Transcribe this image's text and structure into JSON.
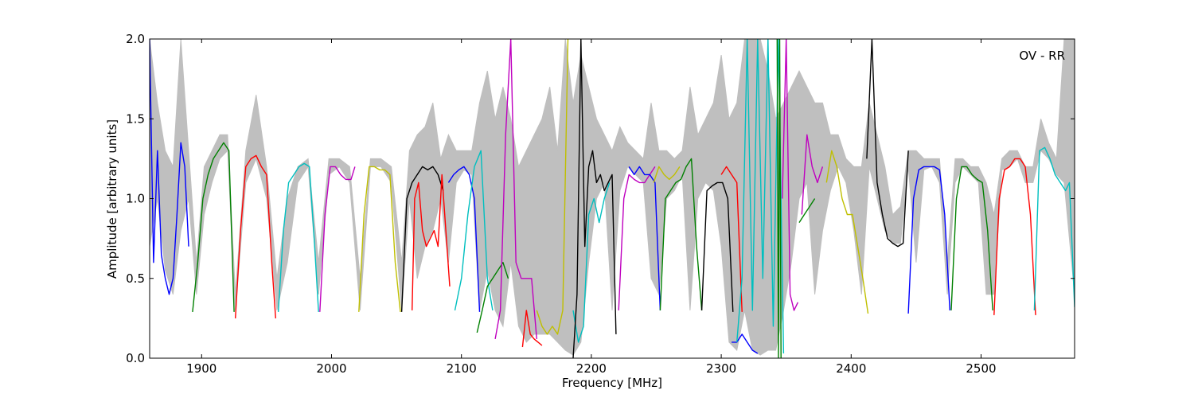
{
  "chart_data": {
    "type": "line",
    "xlabel": "Frequency [MHz]",
    "ylabel": "Amplitude [arbitrary units]",
    "annotation": "OV - RR",
    "xlim": [
      1860,
      2572
    ],
    "ylim": [
      0.0,
      2.0
    ],
    "xticks": [
      1900,
      2000,
      2100,
      2200,
      2300,
      2400,
      2500
    ],
    "xtick_labels": [
      "1900",
      "2000",
      "2100",
      "2200",
      "2300",
      "2400",
      "2500"
    ],
    "yticks": [
      0.0,
      0.5,
      1.0,
      1.5,
      2.0
    ],
    "ytick_labels": [
      "0.0",
      "0.5",
      "1.0",
      "1.5",
      "2.0"
    ],
    "grid": false,
    "colors": {
      "background_series": "#bfbfbf",
      "palette": [
        "#0000ff",
        "#008000",
        "#ff0000",
        "#00bfbf",
        "#bf00bf",
        "#bfbf00",
        "#000000"
      ]
    },
    "background_envelope": {
      "name": "background",
      "color": "#bfbfbf",
      "x": [
        1860,
        1866,
        1872,
        1878,
        1884,
        1890,
        1896,
        1902,
        1908,
        1914,
        1920,
        1926,
        1934,
        1942,
        1950,
        1958,
        1966,
        1974,
        1982,
        1990,
        1998,
        2006,
        2014,
        2022,
        2030,
        2038,
        2046,
        2054,
        2060,
        2066,
        2072,
        2078,
        2084,
        2090,
        2096,
        2102,
        2108,
        2114,
        2120,
        2126,
        2132,
        2138,
        2144,
        2150,
        2156,
        2162,
        2168,
        2174,
        2180,
        2186,
        2192,
        2198,
        2204,
        2210,
        2216,
        2222,
        2228,
        2234,
        2240,
        2246,
        2252,
        2258,
        2264,
        2270,
        2276,
        2282,
        2288,
        2294,
        2300,
        2306,
        2312,
        2318,
        2324,
        2330,
        2336,
        2342,
        2348,
        2354,
        2360,
        2366,
        2372,
        2378,
        2384,
        2390,
        2396,
        2402,
        2408,
        2414,
        2420,
        2426,
        2432,
        2438,
        2444,
        2450,
        2456,
        2462,
        2468,
        2474,
        2480,
        2486,
        2492,
        2498,
        2504,
        2510,
        2516,
        2522,
        2528,
        2534,
        2540,
        2546,
        2552,
        2558,
        2564,
        2572
      ],
      "y_low": [
        0.7,
        1.0,
        0.55,
        0.4,
        0.8,
        1.0,
        0.4,
        0.9,
        1.1,
        1.25,
        1.3,
        0.3,
        1.1,
        1.25,
        1.0,
        0.3,
        0.6,
        1.1,
        1.2,
        0.4,
        1.15,
        1.2,
        1.1,
        0.3,
        1.2,
        1.2,
        1.1,
        0.3,
        1.0,
        0.5,
        0.7,
        0.8,
        1.0,
        0.6,
        1.1,
        1.18,
        1.15,
        0.3,
        0.55,
        0.3,
        0.2,
        0.6,
        0.2,
        0.1,
        0.15,
        0.15,
        0.15,
        0.1,
        0.05,
        0.02,
        0.1,
        0.6,
        1.0,
        1.1,
        0.3,
        1.05,
        1.2,
        1.15,
        1.1,
        0.5,
        0.4,
        1.0,
        1.05,
        1.15,
        0.3,
        1.0,
        1.1,
        1.05,
        0.7,
        0.1,
        0.05,
        0.3,
        0.05,
        0.02,
        0.05,
        0.05,
        0.3,
        0.6,
        1.0,
        1.1,
        0.4,
        0.8,
        1.05,
        1.2,
        1.1,
        0.8,
        0.4,
        1.2,
        1.0,
        0.8,
        0.72,
        0.72,
        1.2,
        0.6,
        1.18,
        1.2,
        1.1,
        0.4,
        1.1,
        1.2,
        1.15,
        1.1,
        0.4,
        0.4,
        1.18,
        1.2,
        1.25,
        1.1,
        1.1,
        1.3,
        1.25,
        1.15,
        1.1,
        0.4
      ],
      "y_high": [
        2.0,
        1.6,
        1.3,
        1.2,
        2.0,
        1.3,
        0.6,
        1.2,
        1.3,
        1.4,
        1.4,
        0.4,
        1.3,
        1.65,
        1.2,
        0.5,
        1.0,
        1.2,
        1.25,
        0.6,
        1.25,
        1.25,
        1.2,
        0.5,
        1.25,
        1.25,
        1.2,
        0.6,
        1.3,
        1.4,
        1.45,
        1.6,
        1.25,
        1.4,
        1.3,
        1.3,
        1.3,
        1.6,
        1.8,
        1.5,
        1.7,
        1.5,
        1.2,
        1.3,
        1.4,
        1.5,
        1.7,
        1.3,
        2.0,
        1.6,
        1.9,
        1.7,
        1.5,
        1.4,
        1.3,
        1.45,
        1.35,
        1.3,
        1.25,
        1.6,
        1.3,
        1.3,
        1.25,
        1.3,
        1.7,
        1.4,
        1.5,
        1.6,
        1.9,
        1.5,
        1.6,
        2.0,
        2.0,
        2.0,
        1.8,
        1.5,
        1.6,
        1.7,
        1.8,
        1.7,
        1.6,
        1.6,
        1.4,
        1.4,
        1.25,
        1.2,
        1.2,
        1.6,
        1.4,
        1.2,
        0.9,
        0.95,
        1.3,
        1.3,
        1.25,
        1.25,
        1.25,
        0.6,
        1.25,
        1.25,
        1.2,
        1.2,
        1.1,
        0.9,
        1.25,
        1.3,
        1.3,
        1.2,
        1.2,
        1.5,
        1.35,
        1.25,
        2.0,
        2.0
      ]
    },
    "series": [
      {
        "color": "#0000ff",
        "x": [
          1860,
          1863,
          1866,
          1869,
          1872,
          1875,
          1878,
          1881,
          1884,
          1887,
          1890
        ],
        "y": [
          2.0,
          0.6,
          1.3,
          0.65,
          0.5,
          0.4,
          0.5,
          0.9,
          1.35,
          1.2,
          0.7
        ]
      },
      {
        "color": "#008000",
        "x": [
          1893,
          1897,
          1901,
          1905,
          1909,
          1913,
          1917,
          1921,
          1925
        ],
        "y": [
          0.29,
          0.6,
          1.0,
          1.15,
          1.25,
          1.3,
          1.35,
          1.3,
          0.29
        ]
      },
      {
        "color": "#ff0000",
        "x": [
          1926,
          1930,
          1934,
          1938,
          1942,
          1946,
          1950,
          1954,
          1957
        ],
        "y": [
          0.25,
          0.8,
          1.2,
          1.25,
          1.27,
          1.2,
          1.15,
          0.6,
          0.25
        ]
      },
      {
        "color": "#00bfbf",
        "x": [
          1959,
          1963,
          1967,
          1971,
          1975,
          1979,
          1983,
          1987,
          1990
        ],
        "y": [
          0.29,
          0.8,
          1.1,
          1.15,
          1.2,
          1.22,
          1.2,
          0.7,
          0.29
        ]
      },
      {
        "color": "#bf00bf",
        "x": [
          1991,
          1995,
          1999,
          2003,
          2007,
          2011,
          2015,
          2018
        ],
        "y": [
          0.29,
          0.9,
          1.2,
          1.2,
          1.15,
          1.12,
          1.12,
          1.2
        ]
      },
      {
        "color": "#bfbf00",
        "x": [
          2021,
          2025,
          2029,
          2033,
          2037,
          2041,
          2045,
          2049,
          2053
        ],
        "y": [
          0.29,
          0.9,
          1.2,
          1.2,
          1.18,
          1.18,
          1.15,
          0.6,
          0.29
        ]
      },
      {
        "color": "#000000",
        "x": [
          2054,
          2058,
          2062,
          2066,
          2070,
          2074,
          2078,
          2082,
          2086
        ],
        "y": [
          0.29,
          1.0,
          1.1,
          1.15,
          1.2,
          1.18,
          1.2,
          1.15,
          1.05
        ]
      },
      {
        "color": "#ff0000",
        "x": [
          2062,
          2064,
          2067,
          2070,
          2073,
          2076,
          2079,
          2082,
          2085,
          2088,
          2091
        ],
        "y": [
          0.3,
          1.0,
          1.1,
          0.8,
          0.7,
          0.75,
          0.8,
          0.7,
          1.15,
          0.8,
          0.45
        ]
      },
      {
        "color": "#0000ff",
        "x": [
          2090,
          2094,
          2098,
          2102,
          2106,
          2110,
          2114
        ],
        "y": [
          1.1,
          1.15,
          1.18,
          1.2,
          1.15,
          1.0,
          0.29
        ]
      },
      {
        "color": "#00bfbf",
        "x": [
          2095,
          2100,
          2105,
          2110,
          2115,
          2120,
          2124
        ],
        "y": [
          0.3,
          0.5,
          0.9,
          1.2,
          1.3,
          0.5,
          0.3
        ]
      },
      {
        "color": "#008000",
        "x": [
          2112,
          2116,
          2120,
          2124,
          2128,
          2132,
          2136
        ],
        "y": [
          0.16,
          0.3,
          0.45,
          0.5,
          0.55,
          0.6,
          0.5
        ]
      },
      {
        "color": "#bf00bf",
        "x": [
          2126,
          2130,
          2134,
          2138,
          2142,
          2146,
          2150,
          2154,
          2158
        ],
        "y": [
          0.12,
          0.3,
          1.4,
          2.0,
          0.6,
          0.5,
          0.5,
          0.5,
          0.12
        ]
      },
      {
        "color": "#ff0000",
        "x": [
          2147,
          2150,
          2153,
          2156,
          2159,
          2162
        ],
        "y": [
          0.07,
          0.3,
          0.15,
          0.12,
          0.1,
          0.08
        ]
      },
      {
        "color": "#bfbf00",
        "x": [
          2158,
          2162,
          2166,
          2170,
          2174,
          2178,
          2182
        ],
        "y": [
          0.3,
          0.2,
          0.15,
          0.2,
          0.15,
          0.3,
          2.0
        ]
      },
      {
        "color": "#00bfbf",
        "x": [
          2186,
          2190,
          2194,
          2198,
          2202,
          2206,
          2210,
          2214
        ],
        "y": [
          0.3,
          0.1,
          0.2,
          0.9,
          1.0,
          0.85,
          1.0,
          1.1
        ]
      },
      {
        "color": "#000000",
        "x": [
          2186,
          2189,
          2192,
          2195,
          2198,
          2201,
          2204,
          2207,
          2210,
          2213,
          2216,
          2219
        ],
        "y": [
          0.0,
          0.4,
          2.0,
          0.7,
          1.2,
          1.3,
          1.1,
          1.15,
          1.05,
          1.1,
          1.15,
          0.15
        ]
      },
      {
        "color": "#bf00bf",
        "x": [
          2221,
          2225,
          2229,
          2233,
          2237,
          2241,
          2245,
          2249
        ],
        "y": [
          0.3,
          1.0,
          1.15,
          1.12,
          1.1,
          1.1,
          1.15,
          1.2
        ]
      },
      {
        "color": "#0000ff",
        "x": [
          2229,
          2233,
          2237,
          2241,
          2245,
          2249,
          2253
        ],
        "y": [
          1.2,
          1.15,
          1.2,
          1.15,
          1.15,
          1.1,
          0.3
        ]
      },
      {
        "color": "#008000",
        "x": [
          2253,
          2257,
          2261,
          2265,
          2269,
          2273,
          2277,
          2281,
          2285
        ],
        "y": [
          0.3,
          1.0,
          1.05,
          1.1,
          1.12,
          1.2,
          1.25,
          0.7,
          0.3
        ]
      },
      {
        "color": "#bfbf00",
        "x": [
          2248,
          2252,
          2256,
          2260,
          2264,
          2268
        ],
        "y": [
          1.1,
          1.2,
          1.15,
          1.12,
          1.15,
          1.2
        ]
      },
      {
        "color": "#000000",
        "x": [
          2285,
          2289,
          2293,
          2297,
          2301,
          2305,
          2309
        ],
        "y": [
          0.3,
          1.05,
          1.08,
          1.1,
          1.1,
          1.0,
          0.29
        ]
      },
      {
        "color": "#ff0000",
        "x": [
          2300,
          2304,
          2308,
          2312,
          2316
        ],
        "y": [
          1.15,
          1.2,
          1.15,
          1.1,
          0.29
        ]
      },
      {
        "color": "#0000ff",
        "x": [
          2308,
          2312,
          2316,
          2320,
          2324,
          2328
        ],
        "y": [
          0.1,
          0.1,
          0.15,
          0.1,
          0.05,
          0.03
        ]
      },
      {
        "color": "#00bfbf",
        "x": [
          2312,
          2316,
          2320,
          2324,
          2328,
          2332,
          2336,
          2340,
          2344,
          2348
        ],
        "y": [
          0.1,
          0.5,
          2.0,
          0.3,
          2.0,
          0.5,
          2.0,
          0.2,
          2.0,
          0.03
        ]
      },
      {
        "color": "#008000",
        "x": [
          2343,
          2344,
          2345,
          2346
        ],
        "y": [
          2.0,
          0.0,
          2.0,
          0.0
        ]
      },
      {
        "color": "#bf00bf",
        "x": [
          2347,
          2350,
          2353,
          2356,
          2359
        ],
        "y": [
          1.0,
          2.0,
          0.4,
          0.3,
          0.35
        ]
      },
      {
        "color": "#008000",
        "x": [
          2360,
          2364,
          2368,
          2372
        ],
        "y": [
          0.85,
          0.9,
          0.95,
          1.0
        ]
      },
      {
        "color": "#bf00bf",
        "x": [
          2362,
          2366,
          2370,
          2374,
          2378
        ],
        "y": [
          0.9,
          1.4,
          1.2,
          1.1,
          1.2
        ]
      },
      {
        "color": "#bfbf00",
        "x": [
          2381,
          2385,
          2389,
          2393,
          2397,
          2401,
          2405,
          2409,
          2413
        ],
        "y": [
          1.1,
          1.3,
          1.2,
          1.0,
          0.9,
          0.9,
          0.7,
          0.5,
          0.28
        ]
      },
      {
        "color": "#000000",
        "x": [
          2412,
          2416,
          2420,
          2424,
          2428,
          2432,
          2436,
          2440,
          2444
        ],
        "y": [
          1.25,
          2.0,
          1.1,
          0.9,
          0.75,
          0.72,
          0.7,
          0.72,
          1.3
        ]
      },
      {
        "color": "#0000ff",
        "x": [
          2444,
          2448,
          2452,
          2456,
          2460,
          2464,
          2468,
          2472,
          2476
        ],
        "y": [
          0.28,
          1.0,
          1.18,
          1.2,
          1.2,
          1.2,
          1.18,
          0.9,
          0.3
        ]
      },
      {
        "color": "#008000",
        "x": [
          2477,
          2481,
          2485,
          2489,
          2493,
          2497,
          2501,
          2505,
          2509
        ],
        "y": [
          0.3,
          1.0,
          1.2,
          1.2,
          1.15,
          1.12,
          1.1,
          0.8,
          0.3
        ]
      },
      {
        "color": "#ff0000",
        "x": [
          2510,
          2514,
          2518,
          2522,
          2526,
          2530,
          2534,
          2538,
          2542
        ],
        "y": [
          0.27,
          1.0,
          1.18,
          1.2,
          1.25,
          1.25,
          1.2,
          0.9,
          0.27
        ]
      },
      {
        "color": "#00bfbf",
        "x": [
          2541,
          2545,
          2549,
          2553,
          2557,
          2561,
          2565,
          2568,
          2572
        ],
        "y": [
          0.3,
          1.3,
          1.32,
          1.25,
          1.15,
          1.1,
          1.05,
          1.1,
          0.32
        ]
      }
    ]
  }
}
